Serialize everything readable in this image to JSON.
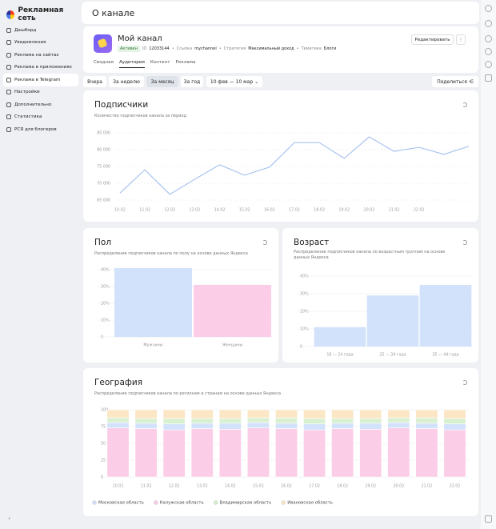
{
  "sidebar": {
    "brand": "Рекламная сеть",
    "menu": [
      "Дашборд",
      "Уведомления",
      "Реклама на сайтах",
      "Реклама в приложениях",
      "Реклама в Telegram",
      "Настройки",
      "Дополнительно",
      "Статистика",
      "РСЯ для блогеров"
    ],
    "active": 4
  },
  "header": {
    "title": "О канале"
  },
  "channel": {
    "name": "Мой канал",
    "status": "Активен",
    "id_label": "ID",
    "id": "12033144",
    "link_label": "Ссылка",
    "link": "mychannel",
    "strategy_label": "Стратегия",
    "strategy": "Максимальный доход",
    "topic_label": "Тематика",
    "topic": "Блоги",
    "edit": "Редактировать",
    "tabs": [
      "Сводная",
      "Аудитория",
      "Контент",
      "Реклама"
    ],
    "active_tab": 1
  },
  "period": {
    "options": [
      "Вчера",
      "За неделю",
      "За месяц",
      "За год"
    ],
    "active": 2,
    "range": "10 фев — 10 мар",
    "share": "Поделиться"
  },
  "chart_data": [
    {
      "type": "line",
      "title": "Подписчики",
      "subtitle": "Количество подписчиков канала за период",
      "color": "#a9c4ef",
      "grid": true,
      "categories": [
        "10.02",
        "11.02",
        "12.02",
        "13.02",
        "14.02",
        "15.02",
        "16.02",
        "17.02",
        "18.02",
        "19.02",
        "20.02",
        "21.02",
        "22.02",
        null,
        null
      ],
      "values": [
        67100,
        74000,
        66700,
        71200,
        75500,
        72400,
        74800,
        82100,
        82100,
        77400,
        83800,
        79500,
        80700,
        78600,
        81000
      ],
      "ylim": [
        65000,
        85000
      ],
      "yticks": [
        {
          "value": 65000,
          "label": "65 000"
        },
        {
          "value": 70000,
          "label": "70 000"
        },
        {
          "value": 75000,
          "label": "75 000"
        },
        {
          "value": 80000,
          "label": "80 000"
        },
        {
          "value": 85000,
          "label": "85 000"
        }
      ]
    },
    {
      "type": "bar",
      "title": "Пол",
      "subtitle": "Распределение подписчиков канала по полу на основе данных Яндекса",
      "grid": true,
      "categories": [
        "Мужчины",
        "Женщины"
      ],
      "values": [
        41,
        31
      ],
      "colors": [
        "#d3e2fb",
        "#fbcde6"
      ],
      "ylim": [
        0,
        40
      ],
      "yticks": [
        0,
        {
          "value": 10,
          "label": "10%"
        },
        {
          "value": 20,
          "label": "20%"
        },
        {
          "value": 30,
          "label": "30%"
        },
        {
          "value": 40,
          "label": "40%"
        }
      ]
    },
    {
      "type": "bar",
      "title": "Возраст",
      "subtitle": "Распределение подписчиков канала по возрастным группам на основе данных Яндекса",
      "grid": true,
      "categories": [
        "18 — 24 года",
        "25 — 34 года",
        "35 — 44 года"
      ],
      "values": [
        11,
        29,
        35
      ],
      "colors": [
        "#d3e2fb",
        "#d3e2fb",
        "#d3e2fb"
      ],
      "ylim": [
        0,
        40
      ],
      "yticks": [
        0,
        {
          "value": 10,
          "label": "10%"
        },
        {
          "value": 20,
          "label": "20%"
        },
        {
          "value": 30,
          "label": "30%"
        },
        {
          "value": 40,
          "label": "40%"
        }
      ]
    },
    {
      "type": "stacked-bar",
      "title": "География",
      "subtitle": "Распределение подписчиков канала по регионам и странам на основе данных Яндекса",
      "grid": true,
      "categories": [
        "10.02",
        "11.02",
        "12.02",
        "13.02",
        "14.02",
        "15.02",
        "16.02",
        "17.02",
        "18.02",
        "19.02",
        "20.02",
        "21.02",
        "22.02"
      ],
      "series": [
        {
          "name": "Калужская область",
          "color": "#fbcde6",
          "values": [
            73,
            72,
            70,
            72,
            71,
            73,
            72,
            70,
            72,
            71,
            73,
            72,
            70
          ]
        },
        {
          "name": "Московская область",
          "color": "#d3e2fb",
          "values": [
            8,
            8,
            9,
            8,
            9,
            8,
            8,
            9,
            8,
            9,
            8,
            8,
            9
          ]
        },
        {
          "name": "Владимирская область",
          "color": "#d8f0cf",
          "values": [
            7,
            7,
            8,
            7,
            7,
            7,
            8,
            8,
            7,
            7,
            7,
            8,
            8
          ]
        },
        {
          "name": "Ивановская область",
          "color": "#fbe6c6",
          "values": [
            12,
            13,
            13,
            13,
            13,
            12,
            12,
            13,
            13,
            13,
            12,
            12,
            13
          ]
        }
      ],
      "legend_order": [
        1,
        0,
        2,
        3
      ],
      "ylim": [
        0,
        100
      ],
      "yticks": [
        0,
        25,
        50,
        75,
        100
      ]
    }
  ]
}
